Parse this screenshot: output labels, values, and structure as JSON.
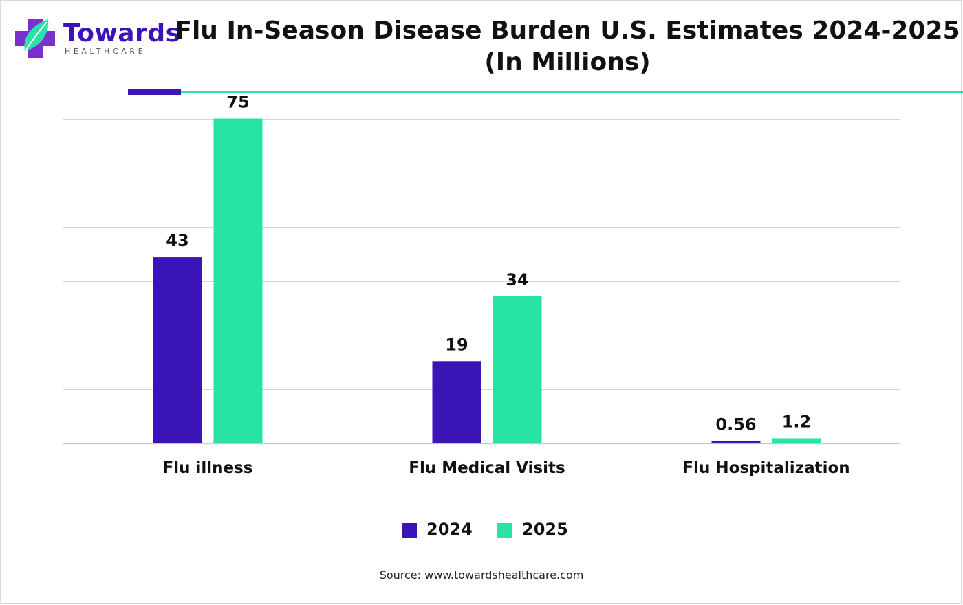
{
  "brand": {
    "name": "Towards",
    "subtitle": "HEALTHCARE",
    "colors": {
      "purple": "#3b14b8",
      "green": "#27e3a6"
    }
  },
  "title_line1": "Flu In-Season Disease Burden U.S. Estimates 2024-2025",
  "title_line2": "(In Millions)",
  "source": "Source: www.towardshealthcare.com",
  "chart_data": {
    "type": "bar",
    "title": "Flu In-Season Disease Burden U.S. Estimates 2024-2025 (In Millions)",
    "categories": [
      "Flu illness",
      "Flu Medical Visits",
      "Flu Hospitalization"
    ],
    "series": [
      {
        "name": "2024",
        "color": "#3b14b8",
        "values": [
          43,
          19,
          0.56
        ],
        "labels": [
          "43",
          "19",
          "0.56"
        ]
      },
      {
        "name": "2025",
        "color": "#27e3a6",
        "values": [
          75,
          34,
          1.2
        ],
        "labels": [
          "75",
          "34",
          "1.2"
        ]
      }
    ],
    "xlabel": "",
    "ylabel": "",
    "ylim": [
      0,
      90
    ],
    "grid": true,
    "legend": "bottom-center"
  }
}
